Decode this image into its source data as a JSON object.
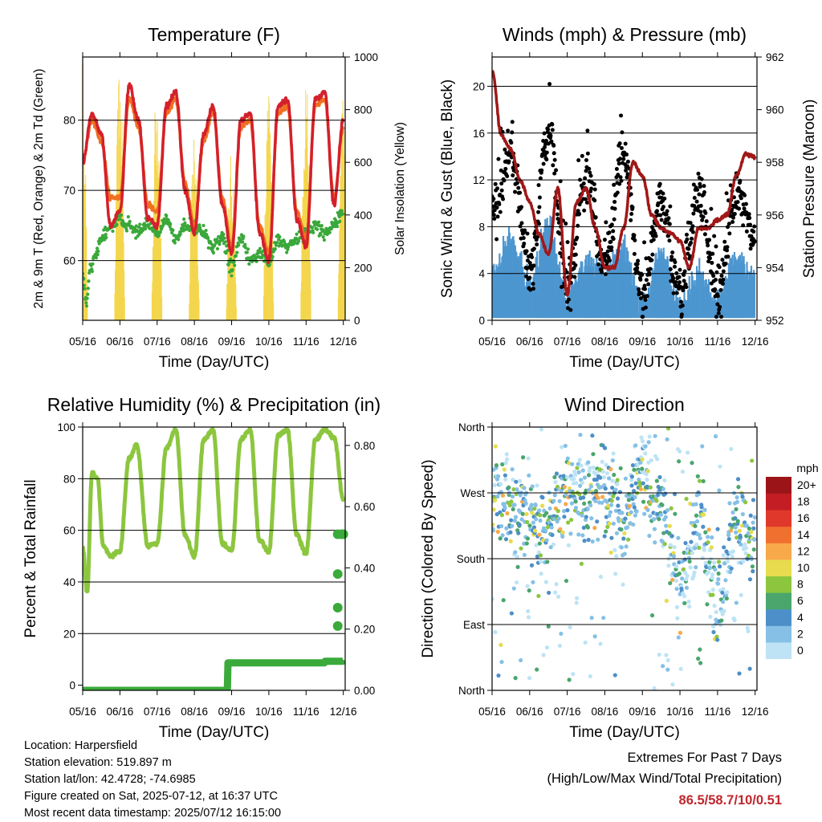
{
  "palette": {
    "temp2m": "#d4202b",
    "temp9m": "#f07020",
    "dewpoint": "#3aa83a",
    "solar": "#f4d64e",
    "wind": "#4d96d0",
    "gust": "#000000",
    "pressure": "#a01818",
    "rh": "#8cc63f",
    "rain": "#3aaa3a",
    "extremes": "#c0272d"
  },
  "info": {
    "location": "Location: Harpersfield",
    "elevation": "Station elevation: 519.897 m",
    "latlon": "Station lat/lon: 42.4728; -74.6985",
    "created": "Figure created on Sat, 2025-07-12, at 16:37 UTC",
    "timestamp": "Most recent data timestamp: 2025/07/12 16:15:00"
  },
  "extremes": {
    "title": "Extremes For Past 7 Days",
    "subtitle": "(High/Low/Max Wind/Total Precipitation)",
    "values": "86.5/58.7/10/0.51"
  },
  "chart_data": [
    {
      "type": "line",
      "title": "Temperature (F)",
      "xlabel": "Time (Day/UTC)",
      "ylabel": "2m & 9m T (Red, Orange) & 2m Td (Green)",
      "y2label": "Solar Insolation (Yellow)",
      "xticks": [
        "05/16",
        "06/16",
        "07/16",
        "08/16",
        "09/16",
        "10/16",
        "11/16",
        "12/16"
      ],
      "xlim": [
        0,
        7.05
      ],
      "ylim": [
        51.5,
        89
      ],
      "yticks": [
        60,
        70,
        80
      ],
      "y2lim": [
        0,
        1000
      ],
      "y2ticks": [
        0,
        200,
        400,
        600,
        800,
        1000
      ],
      "grid": true,
      "series": [
        {
          "name": "2m T",
          "color": "red",
          "x": [
            0,
            0.25,
            0.5,
            0.75,
            1,
            1.25,
            1.5,
            1.75,
            2,
            2.25,
            2.5,
            2.75,
            3,
            3.25,
            3.5,
            3.75,
            4,
            4.25,
            4.5,
            4.75,
            5,
            5.25,
            5.5,
            5.75,
            6,
            6.25,
            6.5,
            6.75,
            7
          ],
          "values": [
            74,
            81,
            78,
            65,
            67,
            85,
            80,
            66,
            65,
            82,
            84,
            70,
            64,
            78,
            82,
            68,
            61,
            80,
            81,
            64,
            60,
            82,
            83,
            66,
            62,
            83,
            84,
            68,
            80
          ]
        },
        {
          "name": "9m T",
          "color": "orange",
          "x": [
            0,
            0.25,
            0.5,
            0.75,
            1,
            1.25,
            1.5,
            1.75,
            2,
            2.25,
            2.5,
            2.75,
            3,
            3.25,
            3.5,
            3.75,
            4,
            4.25,
            4.5,
            4.75,
            5,
            5.25,
            5.5,
            5.75,
            6,
            6.25,
            6.5,
            6.75,
            7
          ],
          "values": [
            74,
            80,
            77,
            69,
            69,
            83,
            79,
            68,
            67,
            81,
            83,
            71,
            65,
            77,
            81,
            69,
            62,
            79,
            80,
            65,
            61,
            81,
            82,
            67,
            63,
            82,
            83,
            69,
            79
          ]
        },
        {
          "name": "2m Td",
          "color": "green",
          "x": [
            0,
            0.1,
            0.2,
            0.35,
            0.5,
            0.75,
            1,
            1.25,
            1.5,
            1.75,
            2,
            2.25,
            2.5,
            2.75,
            3,
            3.25,
            3.5,
            3.75,
            4,
            4.25,
            4.5,
            4.75,
            5,
            5.25,
            5.5,
            5.75,
            6,
            6.25,
            6.5,
            6.75,
            7
          ],
          "values": [
            58,
            54,
            59,
            61,
            63,
            65,
            66,
            65,
            64,
            65,
            64,
            66,
            63,
            65,
            65,
            64,
            62,
            63,
            59,
            63,
            60,
            61,
            60,
            63,
            62,
            63,
            64,
            65,
            64,
            65,
            67
          ]
        },
        {
          "name": "Solar Insolation",
          "color": "yellow",
          "axis": "y2",
          "daily_peaks": [
            1000,
            980,
            960,
            760,
            640,
            880,
            1000,
            880
          ]
        }
      ]
    },
    {
      "type": "scatter",
      "title": "Winds (mph) & Pressure (mb)",
      "xlabel": "Time (Day/UTC)",
      "ylabel": "Sonic Wind & Gust (Blue, Black)",
      "y2label": "Station Pressure (Maroon)",
      "xticks": [
        "05/16",
        "06/16",
        "07/16",
        "08/16",
        "09/16",
        "10/16",
        "11/16",
        "12/16"
      ],
      "xlim": [
        0,
        7.05
      ],
      "ylim": [
        0,
        22.5
      ],
      "yticks": [
        0,
        4,
        8,
        12,
        16,
        20
      ],
      "y2lim": [
        952,
        962
      ],
      "y2ticks": [
        952,
        954,
        956,
        958,
        960,
        962
      ],
      "grid": true,
      "series": [
        {
          "name": "Sonic Wind",
          "color": "blue",
          "x": [
            0,
            0.5,
            1,
            1.5,
            2,
            2.5,
            3,
            3.5,
            4,
            4.5,
            5,
            5.5,
            6,
            6.5,
            7
          ],
          "values": [
            4,
            7,
            3,
            8,
            2,
            5,
            4,
            6,
            1,
            6,
            1,
            4,
            2,
            5,
            4
          ]
        },
        {
          "name": "Gust",
          "color": "black",
          "x": [
            0,
            0.5,
            1,
            1.5,
            2,
            2.5,
            3,
            3.5,
            4,
            4.5,
            5,
            5.5,
            6,
            6.5,
            7
          ],
          "values": [
            9,
            14,
            4,
            16,
            3,
            12,
            5,
            14,
            2,
            10,
            2,
            11,
            2,
            11,
            7
          ],
          "max": 20.5
        },
        {
          "name": "Station Pressure",
          "color": "maroon",
          "axis": "y2",
          "x": [
            0,
            0.25,
            0.5,
            0.75,
            1,
            1.25,
            1.5,
            1.75,
            2,
            2.25,
            2.5,
            2.75,
            3,
            3.25,
            3.5,
            3.75,
            4,
            4.25,
            4.5,
            4.75,
            5,
            5.25,
            5.5,
            5.75,
            6,
            6.25,
            6.5,
            6.75,
            7
          ],
          "values": [
            961.5,
            959,
            958.5,
            957.3,
            956.5,
            955.3,
            954.5,
            957,
            953,
            956.5,
            957,
            955.5,
            954,
            954,
            955.5,
            958,
            957.5,
            956,
            955.5,
            955.3,
            955,
            954,
            955.5,
            955.5,
            955.8,
            956,
            957.5,
            958.3,
            958.2
          ]
        }
      ]
    },
    {
      "type": "line",
      "title": "Relative Humidity (%) & Precipitation (in)",
      "xlabel": "Time (Day/UTC)",
      "ylabel": "Percent & Total Rainfall",
      "xticks": [
        "05/16",
        "06/16",
        "07/16",
        "08/16",
        "09/16",
        "10/16",
        "11/16",
        "12/16"
      ],
      "xlim": [
        0,
        7.05
      ],
      "ylim": [
        -2,
        100
      ],
      "yticks": [
        0,
        20,
        40,
        60,
        80,
        100
      ],
      "y2lim": [
        0,
        0.86
      ],
      "y2ticks": [
        "0.00",
        "0.20",
        "0.40",
        "0.60",
        "0.80"
      ],
      "grid": true,
      "series": [
        {
          "name": "RH",
          "color": "light green",
          "x": [
            0,
            0.12,
            0.25,
            0.4,
            0.55,
            0.75,
            1,
            1.25,
            1.45,
            1.75,
            2,
            2.25,
            2.5,
            2.75,
            3,
            3.25,
            3.5,
            3.75,
            4,
            4.25,
            4.5,
            4.75,
            5,
            5.25,
            5.5,
            5.75,
            6,
            6.25,
            6.5,
            6.75,
            7
          ],
          "values": [
            53,
            36,
            82,
            80,
            54,
            50,
            52,
            88,
            93,
            54,
            55,
            92,
            99,
            58,
            50,
            95,
            99,
            55,
            52,
            95,
            99,
            56,
            52,
            97,
            99,
            58,
            51,
            95,
            99,
            96,
            72
          ]
        },
        {
          "name": "Total Rainfall",
          "color": "green",
          "axis": "y2",
          "x": [
            0,
            1,
            2,
            3,
            3.85,
            3.9,
            4,
            5,
            6,
            6.5,
            7
          ],
          "values": [
            0,
            0,
            0,
            0,
            0,
            0.09,
            0.09,
            0.09,
            0.09,
            0.095,
            0.1
          ]
        },
        {
          "name": "Rain events",
          "color": "green",
          "axis": "y2",
          "x": [
            6.85,
            6.85,
            6.85,
            6.85,
            6.95,
            7
          ],
          "values": [
            0.21,
            0.27,
            0.38,
            0.51,
            0.51,
            0.51
          ]
        }
      ]
    },
    {
      "type": "scatter",
      "title": "Wind Direction",
      "xlabel": "Time (Day/UTC)",
      "ylabel": "Direction (Colored By Speed)",
      "xticks": [
        "05/16",
        "06/16",
        "07/16",
        "08/16",
        "09/16",
        "10/16",
        "11/16",
        "12/16"
      ],
      "xlim": [
        0,
        7.05
      ],
      "ylim": [
        0,
        360
      ],
      "yticks": [
        "North",
        "East",
        "South",
        "West",
        "North"
      ],
      "grid": true,
      "legend_title": "mph",
      "legend_levels": [
        "0",
        "2",
        "4",
        "6",
        "8",
        "10",
        "12",
        "14",
        "16",
        "18",
        "20+"
      ],
      "legend_colors": [
        "#bde3f5",
        "#86c0e6",
        "#4d8fc8",
        "#4aa66c",
        "#8cc63f",
        "#e6dc4e",
        "#f8a94a",
        "#f07030",
        "#e0382a",
        "#c41e24",
        "#9b1518"
      ],
      "legend_position": "right",
      "series": [
        {
          "name": "Direction",
          "x": [
            0,
            0.5,
            1,
            1.5,
            2,
            2.5,
            3,
            3.5,
            4,
            4.5,
            5,
            5.5,
            6,
            6.5,
            7
          ],
          "values": [
            265,
            250,
            240,
            215,
            285,
            260,
            280,
            230,
            300,
            250,
            140,
            240,
            120,
            230,
            200
          ]
        }
      ]
    }
  ]
}
